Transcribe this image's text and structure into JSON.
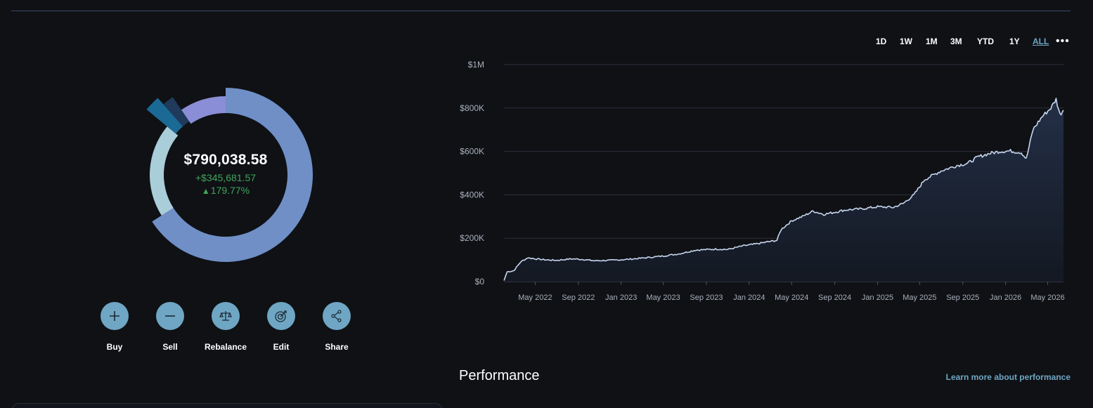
{
  "summary": {
    "total_value": "$790,038.58",
    "gain_amount": "+$345,681.57",
    "gain_percent": "179.77%",
    "gain_color": "#3fa65a"
  },
  "donut": {
    "segments": [
      {
        "color": "#6f8fc6",
        "share": 0.66
      },
      {
        "color": "#a9cdd9",
        "share": 0.2
      },
      {
        "color": "#1a6a95",
        "share": 0.025
      },
      {
        "color": "#1f3a5a",
        "share": 0.02
      },
      {
        "color": "#8a8ed6",
        "share": 0.095
      }
    ]
  },
  "actions": [
    {
      "id": "buy",
      "label": "Buy",
      "icon": "plus-icon"
    },
    {
      "id": "sell",
      "label": "Sell",
      "icon": "minus-icon"
    },
    {
      "id": "rebalance",
      "label": "Rebalance",
      "icon": "scale-icon"
    },
    {
      "id": "edit",
      "label": "Edit",
      "icon": "target-icon"
    },
    {
      "id": "share",
      "label": "Share",
      "icon": "share-icon"
    }
  ],
  "ranges": {
    "items": [
      "1D",
      "1W",
      "1M",
      "3M",
      "YTD",
      "1Y",
      "ALL"
    ],
    "active": "ALL",
    "more_icon": "more-horizontal-icon"
  },
  "chart_data": {
    "type": "area",
    "y_ticks": [
      "$0",
      "$200K",
      "$400K",
      "$600K",
      "$800K",
      "$1M"
    ],
    "ylim": [
      0,
      1000000
    ],
    "x_ticks": [
      "May 2022",
      "Sep 2022",
      "Jan 2023",
      "May 2023",
      "Sep 2023",
      "Jan 2024",
      "May 2024",
      "Sep 2024",
      "Jan 2025",
      "May 2025",
      "Sep 2025",
      "Jan 2026",
      "May 2026"
    ],
    "xlim": [
      "2022-02-01",
      "2026-06-15"
    ],
    "grid": true,
    "series": [
      {
        "color": "#c7d6ef",
        "points": [
          [
            "2022-02-01",
            5000
          ],
          [
            "2022-02-10",
            45000
          ],
          [
            "2022-03-01",
            50000
          ],
          [
            "2022-03-20",
            90000
          ],
          [
            "2022-04-10",
            110000
          ],
          [
            "2022-05-01",
            105000
          ],
          [
            "2022-06-01",
            100000
          ],
          [
            "2022-07-01",
            98000
          ],
          [
            "2022-08-15",
            105000
          ],
          [
            "2022-09-15",
            102000
          ],
          [
            "2022-10-15",
            96000
          ],
          [
            "2022-12-01",
            98000
          ],
          [
            "2023-01-15",
            102000
          ],
          [
            "2023-03-01",
            108000
          ],
          [
            "2023-05-01",
            118000
          ],
          [
            "2023-06-15",
            128000
          ],
          [
            "2023-08-01",
            145000
          ],
          [
            "2023-10-01",
            150000
          ],
          [
            "2023-11-01",
            148000
          ],
          [
            "2023-12-15",
            165000
          ],
          [
            "2024-01-15",
            172000
          ],
          [
            "2024-03-01",
            185000
          ],
          [
            "2024-03-20",
            190000
          ],
          [
            "2024-04-01",
            240000
          ],
          [
            "2024-05-01",
            280000
          ],
          [
            "2024-06-01",
            300000
          ],
          [
            "2024-07-01",
            325000
          ],
          [
            "2024-08-01",
            310000
          ],
          [
            "2024-09-01",
            320000
          ],
          [
            "2024-10-01",
            330000
          ],
          [
            "2024-11-15",
            335000
          ],
          [
            "2025-01-01",
            345000
          ],
          [
            "2025-02-15",
            342000
          ],
          [
            "2025-03-15",
            360000
          ],
          [
            "2025-04-15",
            400000
          ],
          [
            "2025-05-15",
            470000
          ],
          [
            "2025-07-01",
            510000
          ],
          [
            "2025-08-15",
            535000
          ],
          [
            "2025-09-15",
            545000
          ],
          [
            "2025-10-15",
            575000
          ],
          [
            "2025-11-15",
            590000
          ],
          [
            "2025-12-15",
            600000
          ],
          [
            "2026-01-15",
            602000
          ],
          [
            "2026-02-15",
            595000
          ],
          [
            "2026-03-01",
            565000
          ],
          [
            "2026-03-20",
            700000
          ],
          [
            "2026-04-15",
            760000
          ],
          [
            "2026-05-10",
            800000
          ],
          [
            "2026-05-25",
            840000
          ],
          [
            "2026-06-05",
            770000
          ],
          [
            "2026-06-15",
            790000
          ]
        ]
      }
    ]
  },
  "performance": {
    "title": "Performance",
    "link": "Learn more about performance"
  },
  "colors": {
    "background": "#0f1115",
    "accent": "#6fa6c4",
    "grid": "#2c313a",
    "area_top": "#25314a",
    "area_bottom": "#141a24"
  }
}
